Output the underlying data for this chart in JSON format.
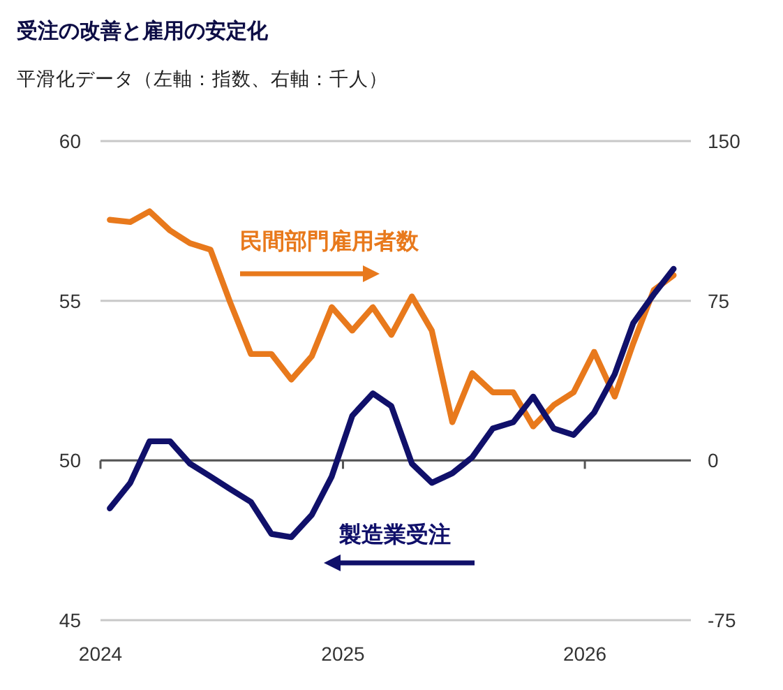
{
  "chart_data": {
    "type": "line",
    "title": "受注の改善と雇用の安定化",
    "subtitle": "平滑化データ（左軸：指数、右軸：千人）",
    "x": [
      "2024-01-15",
      "2024-02-15",
      "2024-03-15",
      "2024-04-15",
      "2024-05-15",
      "2024-06-15",
      "2024-07-15",
      "2024-08-15",
      "2024-09-15",
      "2024-10-15",
      "2024-11-15",
      "2024-12-15",
      "2025-01-15",
      "2025-02-15",
      "2025-03-15",
      "2025-04-15",
      "2025-05-15",
      "2025-06-15",
      "2025-07-15",
      "2025-08-15",
      "2025-09-15",
      "2025-10-15",
      "2025-11-15",
      "2025-12-15",
      "2026-01-15",
      "2026-02-15",
      "2026-03-15",
      "2026-04-15",
      "2026-05-15"
    ],
    "series": [
      {
        "name": "民間部門雇用者数",
        "color": "#e8791c",
        "axis": "y2",
        "values": [
          113,
          112,
          117,
          108,
          102,
          99,
          74,
          50,
          50,
          38,
          49,
          72,
          61,
          72,
          59,
          77,
          61,
          18,
          41,
          32,
          32,
          16,
          26,
          32,
          51,
          30,
          55,
          80,
          87
        ]
      },
      {
        "name": "製造業受注",
        "color": "#10106a",
        "values": [
          48.5,
          49.3,
          50.6,
          50.6,
          49.9,
          49.5,
          49.1,
          48.7,
          47.7,
          47.6,
          48.3,
          49.5,
          51.4,
          52.1,
          51.7,
          49.9,
          49.3,
          49.6,
          50.1,
          51.0,
          51.2,
          52.0,
          51.0,
          50.8,
          51.5,
          52.7,
          54.3,
          55.2,
          56.0
        ]
      }
    ],
    "xlim": [
      "2024-01-01",
      "2026-06-10"
    ],
    "xticks": [
      {
        "value": "2024-01-01",
        "label": "2024"
      },
      {
        "value": "2025-01-01",
        "label": "2025"
      },
      {
        "value": "2026-01-01",
        "label": "2026"
      }
    ],
    "ylim": [
      45,
      60
    ],
    "yticks": [
      45,
      50,
      55,
      60
    ],
    "y2lim": [
      -75,
      150
    ],
    "y2ticks": [
      -75,
      0,
      75,
      150
    ],
    "grid": "y",
    "line_style": "solid",
    "marker": "none"
  }
}
